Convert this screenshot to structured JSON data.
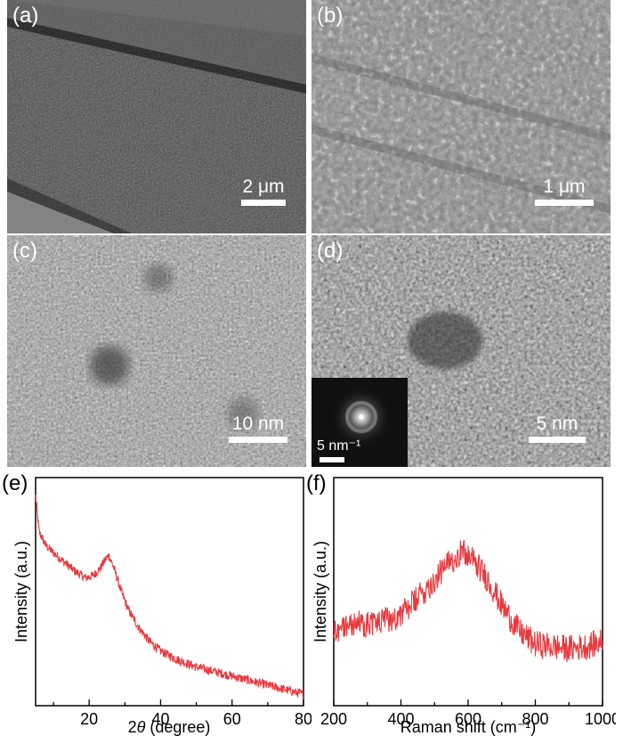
{
  "panels": {
    "a": {
      "label": "(a)",
      "scale": "2 μm"
    },
    "b": {
      "label": "(b)",
      "scale": "1 μm"
    },
    "c": {
      "label": "(c)",
      "scale": "10 nm"
    },
    "d": {
      "label": "(d)",
      "scale": "5 nm",
      "inset_scale": "5 nm⁻¹"
    },
    "e": {
      "label": "(e)"
    },
    "f": {
      "label": "(f)"
    }
  },
  "chart_data": [
    {
      "type": "line",
      "panel": "e",
      "xlabel": "2θ (degree)",
      "ylabel": "Intensity (a.u.)",
      "xlim": [
        5,
        80
      ],
      "xticks": [
        20,
        40,
        60,
        80
      ],
      "line_color": "#e8383d",
      "series": [
        {
          "x": [
            5,
            6,
            8,
            10,
            13,
            16,
            19,
            21,
            23,
            24.5,
            25.5,
            27,
            29,
            31,
            34,
            37,
            40,
            45,
            50,
            55,
            60,
            65,
            70,
            75,
            80
          ],
          "y": [
            0.92,
            0.76,
            0.7,
            0.67,
            0.63,
            0.59,
            0.56,
            0.57,
            0.6,
            0.64,
            0.66,
            0.6,
            0.5,
            0.42,
            0.34,
            0.28,
            0.24,
            0.2,
            0.17,
            0.15,
            0.13,
            0.11,
            0.09,
            0.07,
            0.05
          ]
        }
      ]
    },
    {
      "type": "line",
      "panel": "f",
      "xlabel": "Raman shift (cm⁻¹)",
      "ylabel": "Intensity (a.u.)",
      "xlim": [
        200,
        1000
      ],
      "xticks": [
        200,
        400,
        600,
        800,
        1000
      ],
      "line_color": "#e8383d",
      "series": [
        {
          "x": [
            200,
            250,
            300,
            350,
            400,
            450,
            500,
            540,
            580,
            620,
            660,
            700,
            750,
            800,
            850,
            900,
            950,
            1000
          ],
          "y": [
            0.33,
            0.36,
            0.36,
            0.37,
            0.4,
            0.47,
            0.55,
            0.62,
            0.68,
            0.63,
            0.55,
            0.44,
            0.33,
            0.27,
            0.26,
            0.25,
            0.26,
            0.28
          ]
        }
      ]
    }
  ]
}
